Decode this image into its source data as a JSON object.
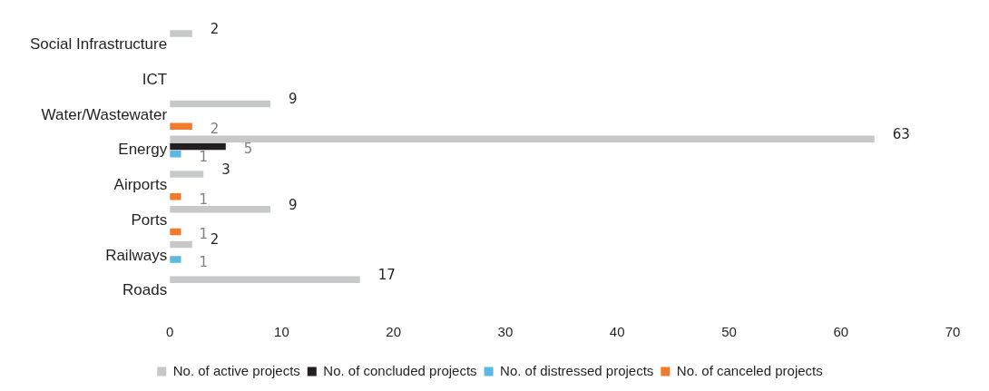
{
  "chart_data": {
    "type": "bar",
    "orientation": "horizontal",
    "categories": [
      "Social Infrastructure",
      "ICT",
      "Water/Wastewater",
      "Energy",
      "Airports",
      "Ports",
      "Railways",
      "Roads"
    ],
    "series": [
      {
        "name": "No. of active projects",
        "color": "#c7c8ca",
        "values": [
          2,
          null,
          9,
          63,
          3,
          9,
          2,
          17
        ]
      },
      {
        "name": "No. of concluded projects",
        "color": "#231f20",
        "values": [
          null,
          null,
          null,
          5,
          null,
          null,
          null,
          null
        ]
      },
      {
        "name": "No. of distressed projects",
        "color": "#5bb8e3",
        "values": [
          null,
          null,
          null,
          1,
          null,
          null,
          1,
          null
        ]
      },
      {
        "name": "No. of canceled projects",
        "color": "#f37a2a",
        "values": [
          null,
          null,
          2,
          null,
          1,
          1,
          null,
          null
        ]
      }
    ],
    "xlim": [
      0,
      70
    ],
    "xticks": [
      0,
      10,
      20,
      30,
      40,
      50,
      60,
      70
    ],
    "grid": false,
    "legend": "bottom",
    "data_labels": true
  }
}
